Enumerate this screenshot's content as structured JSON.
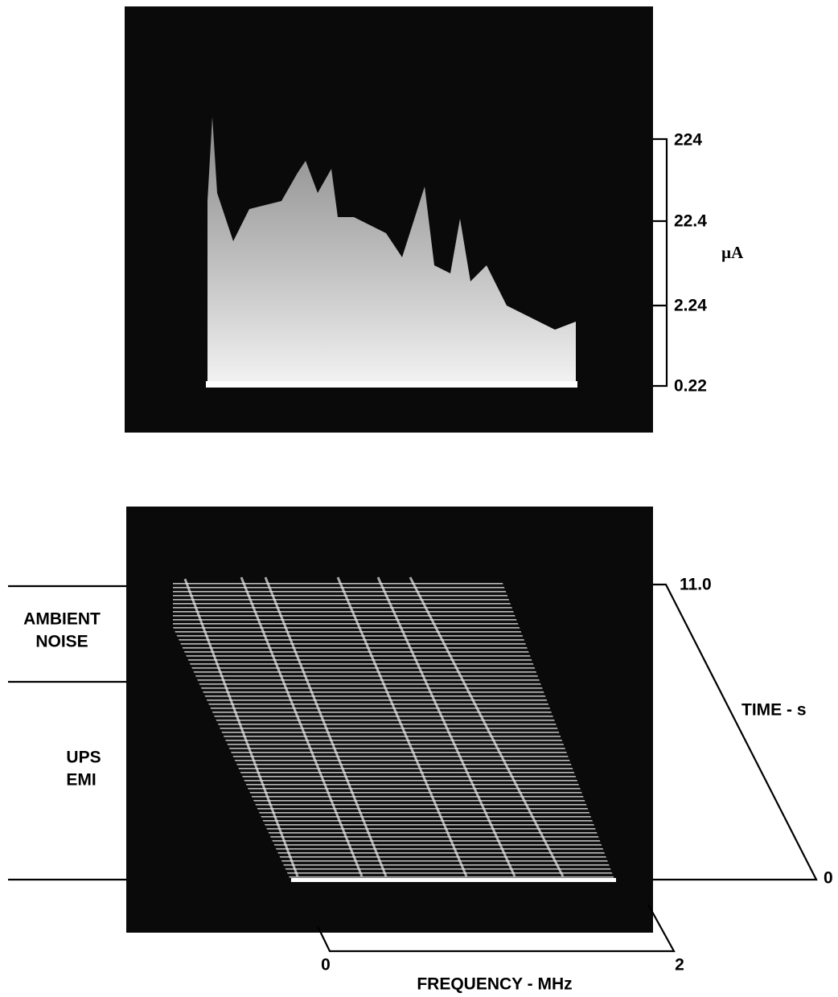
{
  "top_panel": {
    "scale_labels": [
      "224",
      "22.4",
      "2.24",
      "0.22"
    ],
    "unit": "µA"
  },
  "bottom_panel": {
    "regions": [
      {
        "lines": [
          "AMBIENT",
          "NOISE"
        ]
      },
      {
        "lines": [
          "UPS",
          "EMI"
        ]
      }
    ],
    "time_axis": {
      "title": "TIME - s",
      "start": "0",
      "end": "11.0"
    },
    "frequency_axis": {
      "title": "FREQUENCY - MHz",
      "start": "0",
      "end": "2"
    }
  }
}
